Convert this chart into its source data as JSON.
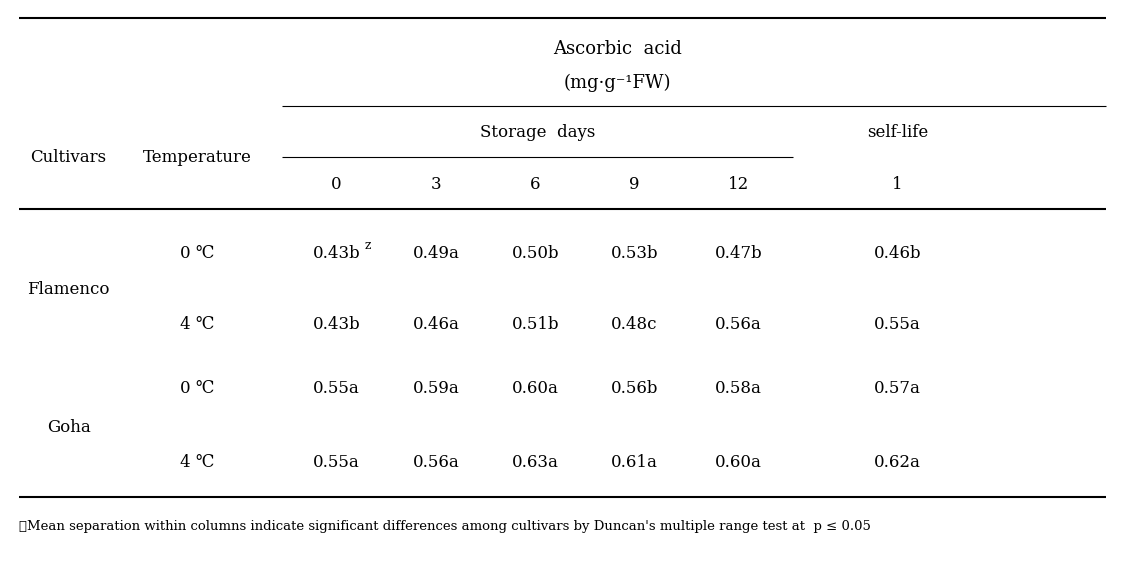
{
  "title_line1": "Ascorbic  acid",
  "title_line2": "(mg·g⁻¹FW)",
  "col_header1": "Cultivars",
  "col_header2": "Temperature",
  "storage_days_label": "Storage  days",
  "selflife_label": "self-life",
  "day_headers": [
    "0",
    "3",
    "6",
    "9",
    "12",
    "1"
  ],
  "rows": [
    {
      "cultivar": "Flamenco",
      "temp": "0 ℃",
      "values": [
        "0.43b",
        "0.49a",
        "0.50b",
        "0.53b",
        "0.47b",
        "0.46b"
      ],
      "superscript_col": 0
    },
    {
      "cultivar": "",
      "temp": "4 ℃",
      "values": [
        "0.43b",
        "0.46a",
        "0.51b",
        "0.48c",
        "0.56a",
        "0.55a"
      ],
      "superscript_col": -1
    },
    {
      "cultivar": "Goha",
      "temp": "0 ℃",
      "values": [
        "0.55a",
        "0.59a",
        "0.60a",
        "0.56b",
        "0.58a",
        "0.57a"
      ],
      "superscript_col": -1
    },
    {
      "cultivar": "",
      "temp": "4 ℃",
      "values": [
        "0.55a",
        "0.56a",
        "0.63a",
        "0.61a",
        "0.60a",
        "0.62a"
      ],
      "superscript_col": -1
    }
  ],
  "footnote": "ᵺMean separation within columns indicate significant differences among cultivars by Duncan's multiple range test at  p ≤ 0.05",
  "bg_color": "#ffffff",
  "text_color": "#000000",
  "font_size": 12,
  "small_font_size": 9.5
}
